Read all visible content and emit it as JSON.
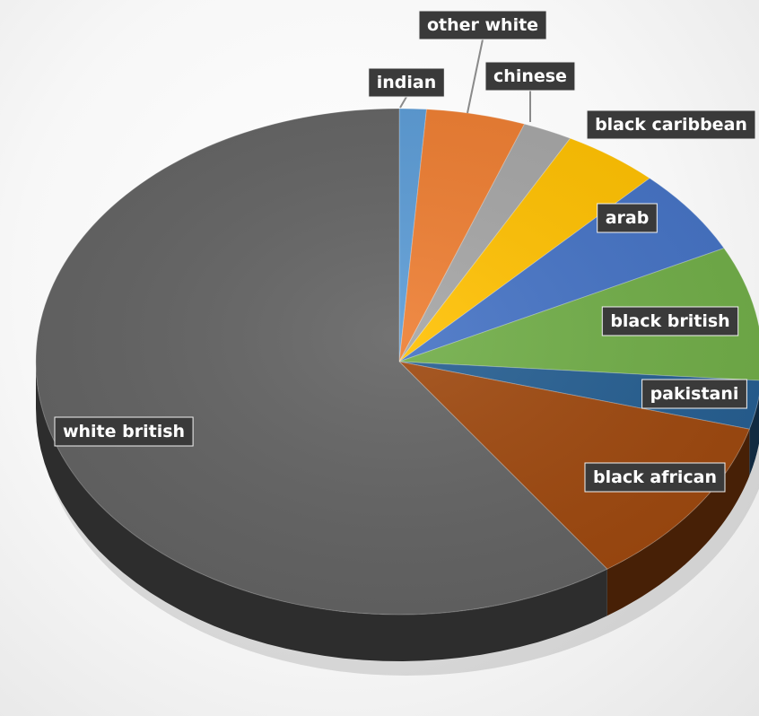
{
  "chart_data": {
    "type": "pie",
    "style": "3d",
    "title": "",
    "slices": [
      {
        "label": "indian",
        "value": 1.2,
        "color": "#5b9bd5"
      },
      {
        "label": "other white",
        "value": 4.4,
        "color": "#ed7d31"
      },
      {
        "label": "chinese",
        "value": 2.2,
        "color": "#a5a5a5"
      },
      {
        "label": "black caribbean",
        "value": 4.3,
        "color": "#ffc000"
      },
      {
        "label": "arab",
        "value": 5.5,
        "color": "#4472c4"
      },
      {
        "label": "black british",
        "value": 8.6,
        "color": "#70ad47"
      },
      {
        "label": "pakistani",
        "value": 3.1,
        "color": "#255e91"
      },
      {
        "label": "black african",
        "value": 11.0,
        "color": "#9e480e"
      },
      {
        "label": "white british",
        "value": 59.7,
        "color": "#636363"
      }
    ]
  }
}
